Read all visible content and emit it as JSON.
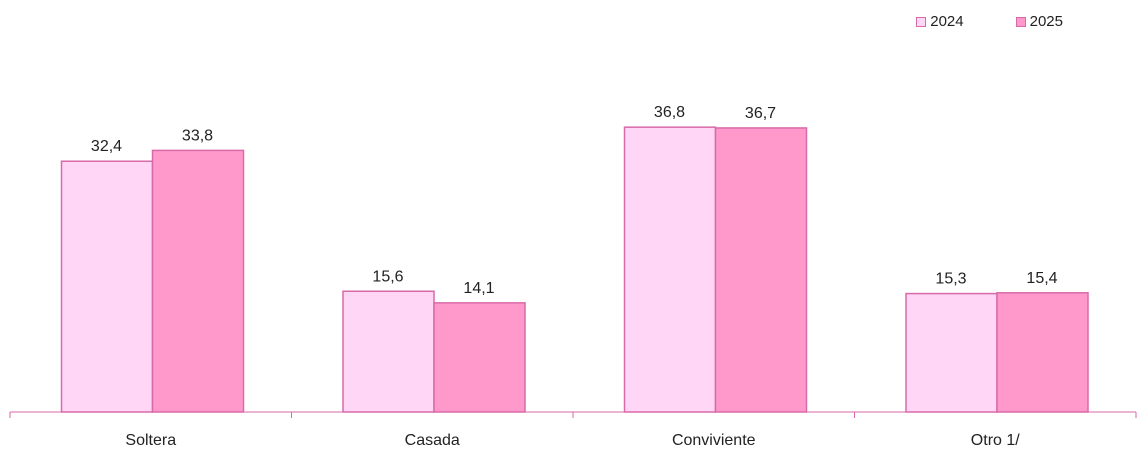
{
  "chart_data": {
    "type": "bar",
    "title": "",
    "xlabel": "",
    "ylabel": "",
    "categories": [
      "Soltera",
      "Casada",
      "Conviviente",
      "Otro 1/"
    ],
    "series": [
      {
        "name": "2024",
        "values": [
          32.4,
          15.6,
          36.8,
          15.3
        ],
        "display": [
          "32,4",
          "15,6",
          "36,8",
          "15,3"
        ]
      },
      {
        "name": "2025",
        "values": [
          33.8,
          14.1,
          36.7,
          15.4
        ],
        "display": [
          "33,8",
          "14,1",
          "36,7",
          "15,4"
        ]
      }
    ],
    "ylim": [
      0,
      40
    ],
    "grid": false,
    "legend_position": "top-right",
    "colors": {
      "fill_2024": "#ffd6f5",
      "fill_2025": "#ff99cc",
      "bar_stroke": "#d86aa8",
      "axis": "#d86aa8"
    }
  }
}
